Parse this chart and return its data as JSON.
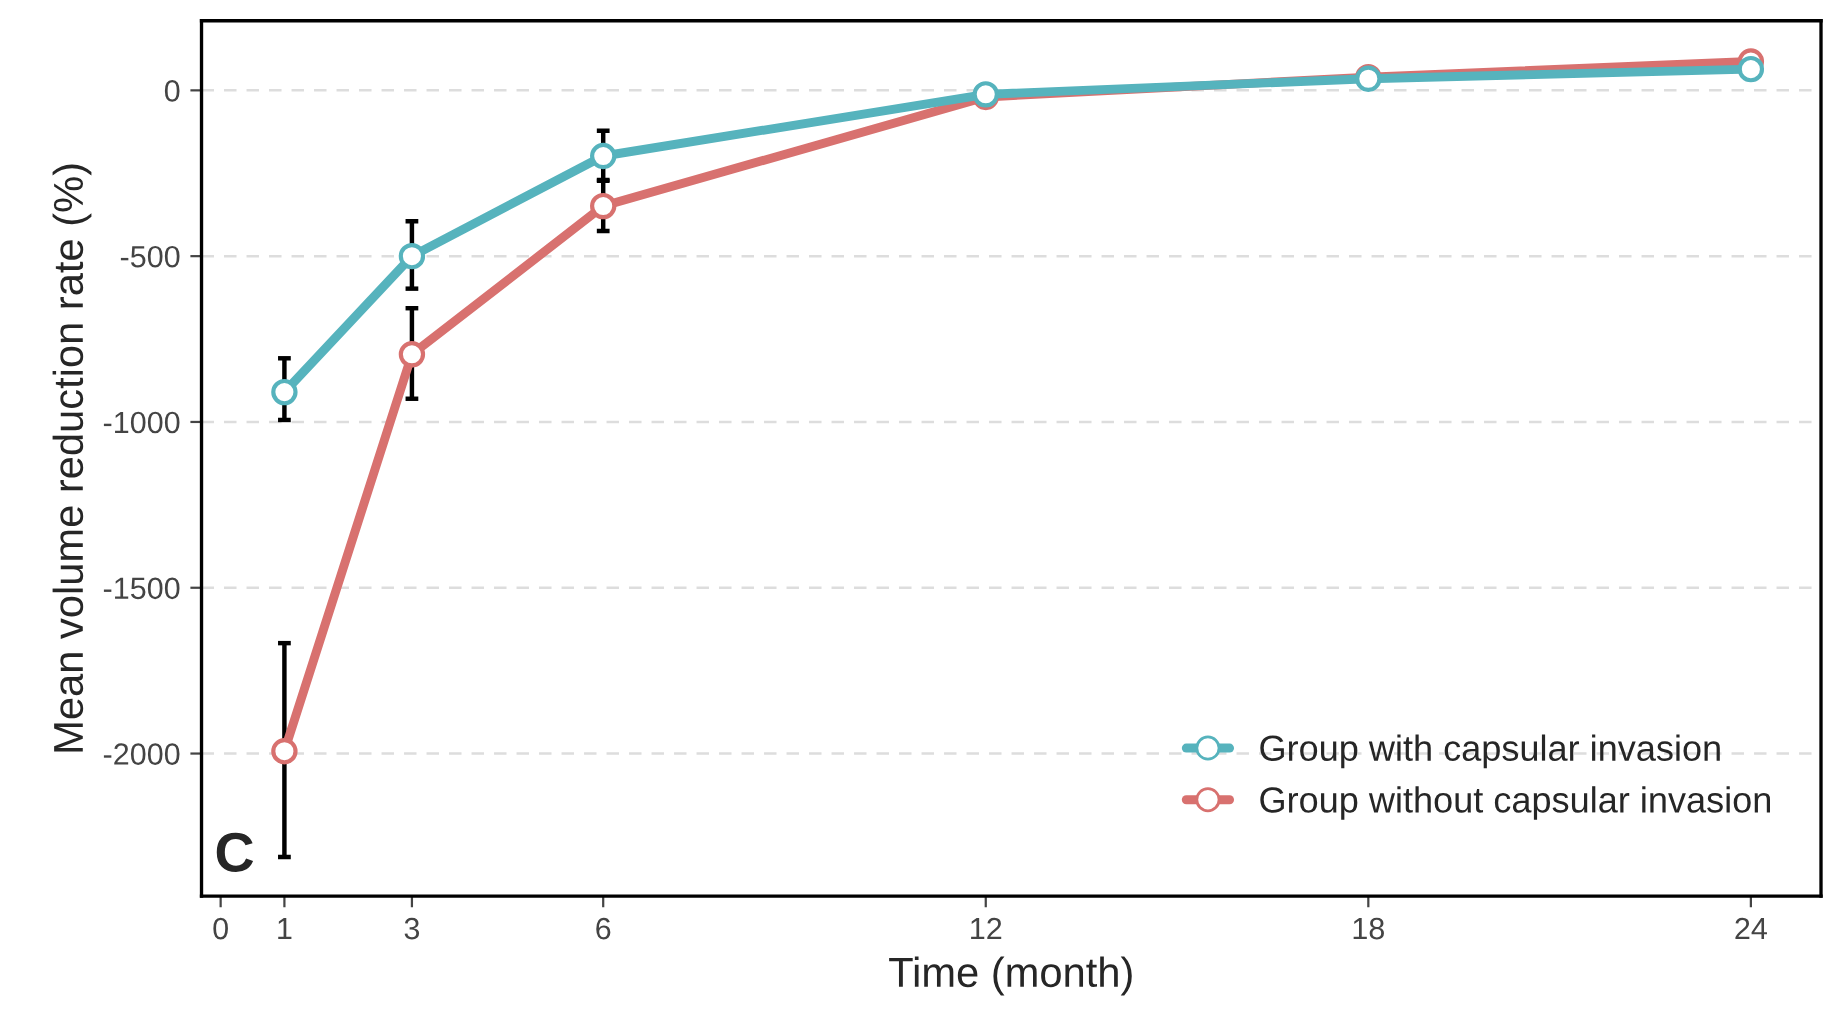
{
  "chart_data": {
    "type": "line",
    "xlabel": "Time (month)",
    "ylabel": "Mean volume reduction rate (%)",
    "x": [
      1,
      3,
      6,
      12,
      18,
      24
    ],
    "series": [
      {
        "name": "Group with capsular invasion",
        "color": "#56b3bd",
        "values": [
          -910,
          -500,
          -198,
          -12,
          35,
          64
        ],
        "errors": [
          [
            -808,
            -994
          ],
          [
            -395,
            -598
          ],
          [
            -122,
            -270
          ],
          null,
          null,
          null
        ]
      },
      {
        "name": "Group without capsular invasion",
        "color": "#d8716f",
        "values": [
          -1993,
          -796,
          -349,
          -20,
          40,
          87
        ],
        "errors": [
          [
            -1667,
            -2312
          ],
          [
            -657,
            -930
          ],
          [
            -273,
            -424
          ],
          null,
          null,
          null
        ]
      }
    ],
    "xlim": [
      -0.3,
      25.1
    ],
    "xticks": [
      0,
      1,
      3,
      6,
      12,
      18,
      24
    ],
    "ylim": [
      -2430,
      210
    ],
    "yticks": [
      0,
      -500,
      -1000,
      -1500,
      -2000
    ],
    "grid": "y",
    "legend": "bottom right",
    "marker": "circle",
    "line_style": "solid",
    "annotations": [
      "C"
    ]
  }
}
